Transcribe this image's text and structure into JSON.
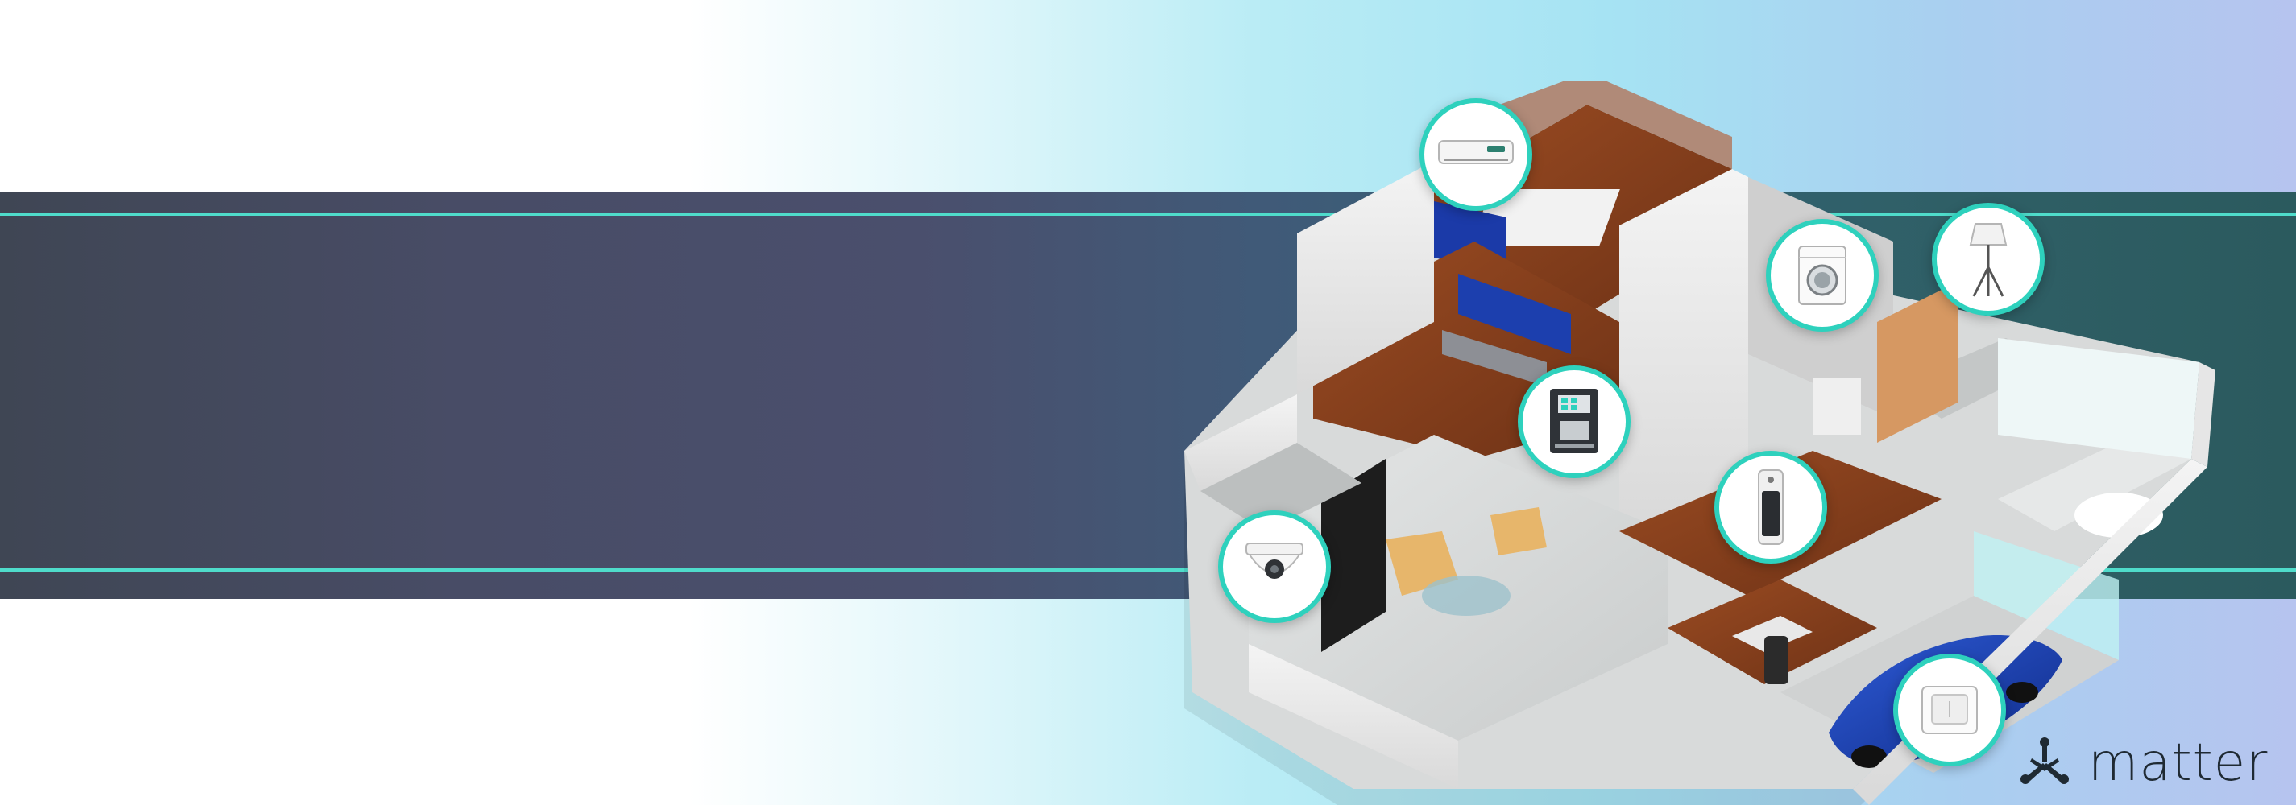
{
  "brand": {
    "logo_text": "matter",
    "logo_icon": "matter-logo-icon",
    "accent_color": "#2ed1bd",
    "banner_line_color": "#4fdccb"
  },
  "devices": [
    {
      "name": "air-conditioner",
      "icon": "air-conditioner-icon"
    },
    {
      "name": "washing-machine",
      "icon": "washing-machine-icon"
    },
    {
      "name": "floor-lamp",
      "icon": "floor-lamp-icon"
    },
    {
      "name": "coffee-machine",
      "icon": "coffee-machine-icon"
    },
    {
      "name": "air-purifier",
      "icon": "air-purifier-icon"
    },
    {
      "name": "security-camera",
      "icon": "security-camera-icon"
    },
    {
      "name": "light-switch",
      "icon": "light-switch-icon"
    }
  ]
}
